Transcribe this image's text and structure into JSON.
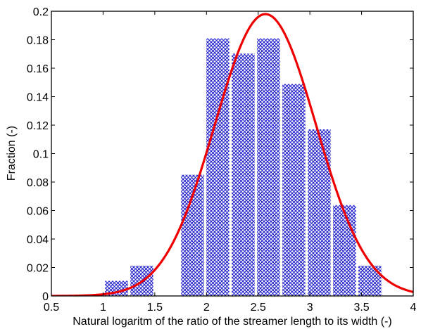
{
  "chart_data": {
    "type": "bar",
    "xlabel": "Natural logaritm of the ratio of the streamer length to its width (-)",
    "ylabel": "Fraction (-)",
    "xlim": [
      0.5,
      4
    ],
    "ylim": [
      0,
      0.2
    ],
    "x_ticks": [
      "0.5",
      "1",
      "1.5",
      "2",
      "2.5",
      "3",
      "3.5",
      "4"
    ],
    "y_ticks": [
      "0",
      "0.02",
      "0.04",
      "0.06",
      "0.08",
      "0.1",
      "0.12",
      "0.14",
      "0.16",
      "0.18",
      "0.2"
    ],
    "bin_width": 0.245,
    "bins": [
      {
        "center": 1.13,
        "value": 0.0106
      },
      {
        "center": 1.375,
        "value": 0.0212
      },
      {
        "center": 1.62,
        "value": 0.0
      },
      {
        "center": 1.865,
        "value": 0.0851
      },
      {
        "center": 2.11,
        "value": 0.1809
      },
      {
        "center": 2.355,
        "value": 0.1702
      },
      {
        "center": 2.6,
        "value": 0.1809
      },
      {
        "center": 2.845,
        "value": 0.1489
      },
      {
        "center": 3.09,
        "value": 0.117
      },
      {
        "center": 3.335,
        "value": 0.0638
      },
      {
        "center": 3.58,
        "value": 0.0212
      }
    ],
    "fit_curve": {
      "kind": "normal",
      "mean": 2.57,
      "sd": 0.49,
      "peak": 0.198,
      "color": "#ee0000"
    },
    "bar_color": "#1c1ccc",
    "grid": false
  }
}
